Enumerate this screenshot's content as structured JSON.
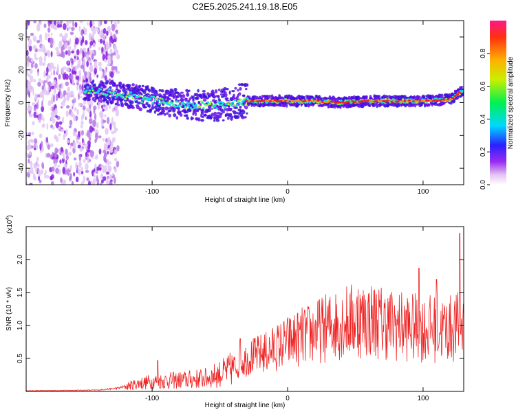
{
  "title": "C2E5.2025.241.19.18.E05",
  "chart_data": [
    {
      "type": "heatmap",
      "name": "spectrogram",
      "xlabel": "Height of straight line (km)",
      "ylabel": "Frequency (Hz)",
      "xlim": [
        -193,
        130
      ],
      "ylim": [
        -50,
        50
      ],
      "xticks": [
        -100,
        0,
        100
      ],
      "yticks": [
        -40,
        -20,
        0,
        20,
        40
      ],
      "colorbar": {
        "label": "Normalized spectral amplitude",
        "range": [
          0,
          1
        ],
        "ticks": [
          0.0,
          0.2,
          0.4,
          0.6,
          0.8
        ],
        "tick_labels": [
          "0.0",
          "0.2",
          "0.4",
          "0.6",
          "0.8"
        ]
      },
      "ridge_center_hz": [
        {
          "x": -150,
          "y": 8
        },
        {
          "x": -130,
          "y": 6
        },
        {
          "x": -110,
          "y": 3
        },
        {
          "x": -90,
          "y": 0
        },
        {
          "x": -70,
          "y": -2
        },
        {
          "x": -50,
          "y": -1
        },
        {
          "x": -30,
          "y": 1
        },
        {
          "x": -20,
          "y": 1
        },
        {
          "x": 0,
          "y": 1
        },
        {
          "x": 20,
          "y": 1
        },
        {
          "x": 40,
          "y": 0
        },
        {
          "x": 60,
          "y": 1
        },
        {
          "x": 80,
          "y": 1
        },
        {
          "x": 100,
          "y": 1
        },
        {
          "x": 120,
          "y": 2
        },
        {
          "x": 130,
          "y": 8
        }
      ],
      "noise_region_x": [
        -193,
        -125
      ]
    },
    {
      "type": "line",
      "name": "snr",
      "color": "#ee2222",
      "xlabel": "Height of straight line (km)",
      "ylabel": "SNR (10 * v/v)",
      "y_multiplier": "(x10",
      "y_exponent": "4",
      "y_multiplier_close": ")",
      "xlim": [
        -193,
        130
      ],
      "ylim": [
        0,
        2.5
      ],
      "xticks": [
        -100,
        0,
        100
      ],
      "yticks": [
        0.5,
        1.0,
        1.5,
        2.0
      ],
      "ytick_labels": [
        "0.5",
        "1.0",
        "1.5",
        "2.0"
      ],
      "envelope": [
        {
          "x": -193,
          "y": 0.01
        },
        {
          "x": -140,
          "y": 0.02
        },
        {
          "x": -125,
          "y": 0.05
        },
        {
          "x": -110,
          "y": 0.12
        },
        {
          "x": -100,
          "y": 0.15
        },
        {
          "x": -80,
          "y": 0.17
        },
        {
          "x": -60,
          "y": 0.2
        },
        {
          "x": -45,
          "y": 0.3
        },
        {
          "x": -30,
          "y": 0.5
        },
        {
          "x": -15,
          "y": 0.6
        },
        {
          "x": 0,
          "y": 0.75
        },
        {
          "x": 20,
          "y": 0.9
        },
        {
          "x": 40,
          "y": 1.05
        },
        {
          "x": 60,
          "y": 1.1
        },
        {
          "x": 80,
          "y": 1.0
        },
        {
          "x": 100,
          "y": 0.95
        },
        {
          "x": 120,
          "y": 0.95
        },
        {
          "x": 130,
          "y": 1.0
        }
      ],
      "peaks": [
        {
          "x": -96,
          "y": 0.47
        },
        {
          "x": -35,
          "y": 0.8
        },
        {
          "x": 52,
          "y": 1.55
        },
        {
          "x": 97,
          "y": 1.87
        },
        {
          "x": 110,
          "y": 1.7
        },
        {
          "x": 127,
          "y": 2.4
        }
      ]
    }
  ]
}
